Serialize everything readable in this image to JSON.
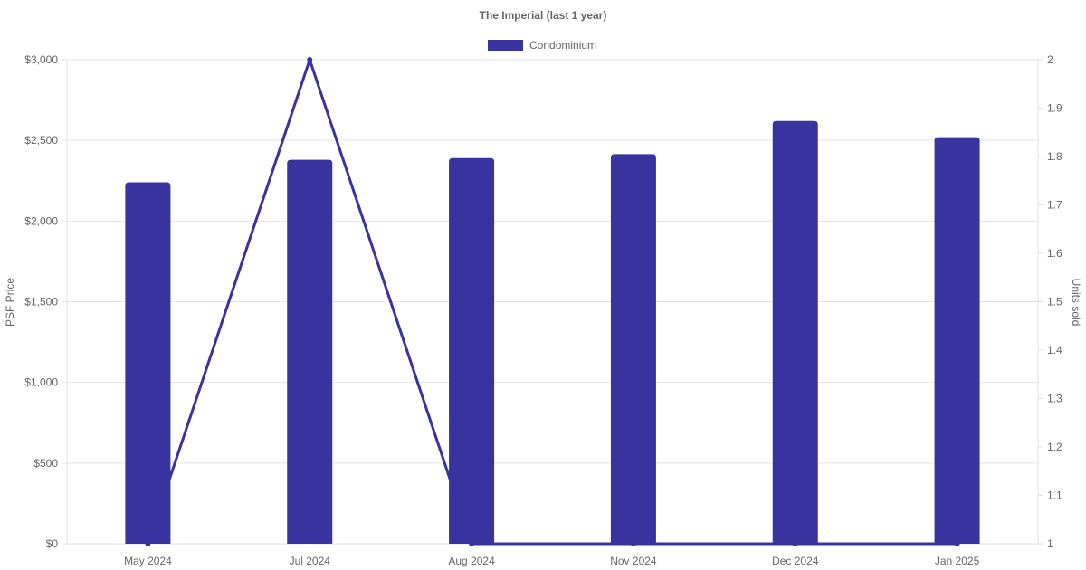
{
  "chart_data": {
    "type": "bar",
    "title": "The Imperial (last 1 year)",
    "categories": [
      "May 2024",
      "Jul 2024",
      "Aug 2024",
      "Nov 2024",
      "Dec 2024",
      "Jan 2025"
    ],
    "series": [
      {
        "name": "Condominium",
        "type": "bar",
        "axis": "left",
        "color": "#38339e",
        "values": [
          2240,
          2380,
          2390,
          2415,
          2620,
          2520
        ]
      },
      {
        "type": "line",
        "axis": "right",
        "color": "#38339e",
        "values": [
          1,
          2,
          1,
          1,
          1,
          1
        ]
      }
    ],
    "ylabel": "PSF Price",
    "ylim": [
      0,
      3000
    ],
    "yticks": [
      0,
      500,
      1000,
      1500,
      2000,
      2500,
      3000
    ],
    "ytick_labels": [
      "$0",
      "$500",
      "$1,000",
      "$1,500",
      "$2,000",
      "$2,500",
      "$3,000"
    ],
    "y2label": "Units sold",
    "y2lim": [
      1,
      2
    ],
    "y2ticks": [
      1,
      1.1,
      1.2,
      1.3,
      1.4,
      1.5,
      1.6,
      1.7,
      1.8,
      1.9,
      2
    ],
    "y2tick_labels": [
      "1",
      "1.1",
      "1.2",
      "1.3",
      "1.4",
      "1.5",
      "1.6",
      "1.7",
      "1.8",
      "1.9",
      "2"
    ],
    "legend": {
      "position": "top",
      "entries": [
        "Condominium"
      ]
    },
    "grid": true
  }
}
